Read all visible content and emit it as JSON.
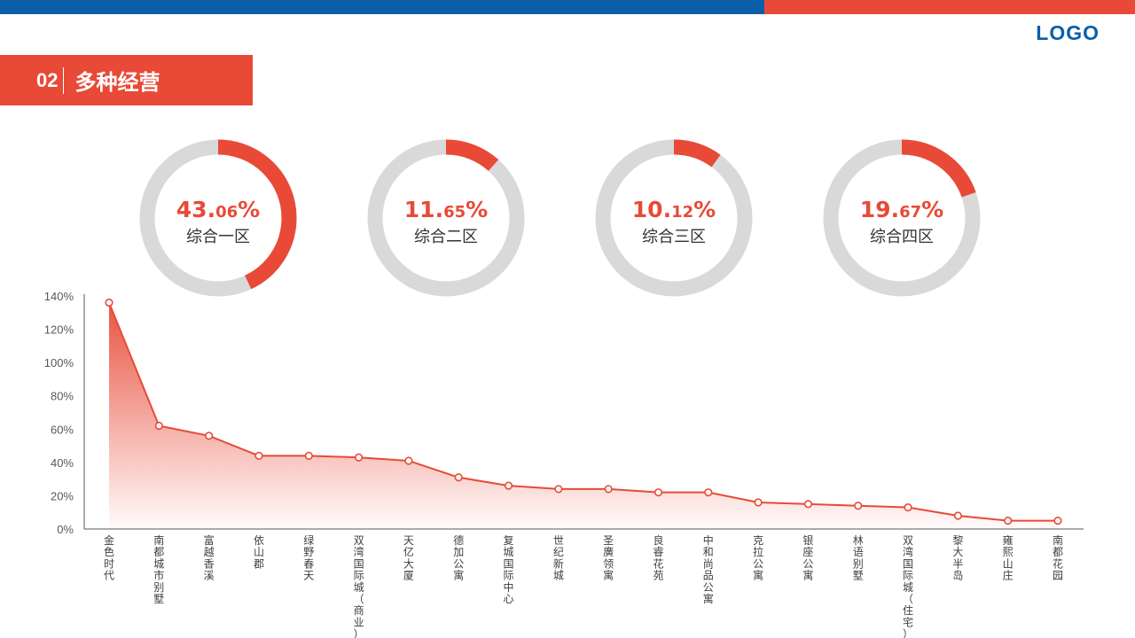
{
  "colors": {
    "accent": "#e84a37",
    "brand_blue": "#0b5fa8",
    "track_gray": "#d9d9d9",
    "axis": "#595959"
  },
  "header": {
    "logo_text": "LOGO"
  },
  "section": {
    "number": "02",
    "title": "多种经营"
  },
  "donuts": [
    {
      "value_main": "43.",
      "value_small": "06",
      "value_suffix": "%",
      "value": 43.06,
      "label": "综合一区"
    },
    {
      "value_main": "11.",
      "value_small": "65",
      "value_suffix": "%",
      "value": 11.65,
      "label": "综合二区"
    },
    {
      "value_main": "10.",
      "value_small": "12",
      "value_suffix": "%",
      "value": 10.12,
      "label": "综合三区"
    },
    {
      "value_main": "19.",
      "value_small": "67",
      "value_suffix": "%",
      "value": 19.67,
      "label": "综合四区"
    }
  ],
  "chart_data": {
    "type": "area",
    "categories": [
      "金色时代",
      "南都城市别墅",
      "富越香溪",
      "依山郡",
      "绿野春天",
      "双湾国际城（商业）",
      "天亿大厦",
      "德加公寓",
      "复城国际中心",
      "世纪新城",
      "圣廣领寓",
      "良睿花苑",
      "中和尚品公寓",
      "克拉公寓",
      "银座公寓",
      "林语别墅",
      "双湾国际城（住宅）",
      "黎大半岛",
      "雍熙山庄",
      "南都花园"
    ],
    "values": [
      136,
      62,
      56,
      44,
      44,
      43,
      41,
      31,
      26,
      24,
      24,
      22,
      22,
      16,
      15,
      14,
      13,
      8,
      5,
      5
    ],
    "yticks": [
      "0%",
      "20%",
      "40%",
      "60%",
      "80%",
      "100%",
      "120%",
      "140%"
    ],
    "ylim": [
      0,
      140
    ],
    "xlabel": "",
    "ylabel": "",
    "grid": false,
    "legend": "none"
  }
}
